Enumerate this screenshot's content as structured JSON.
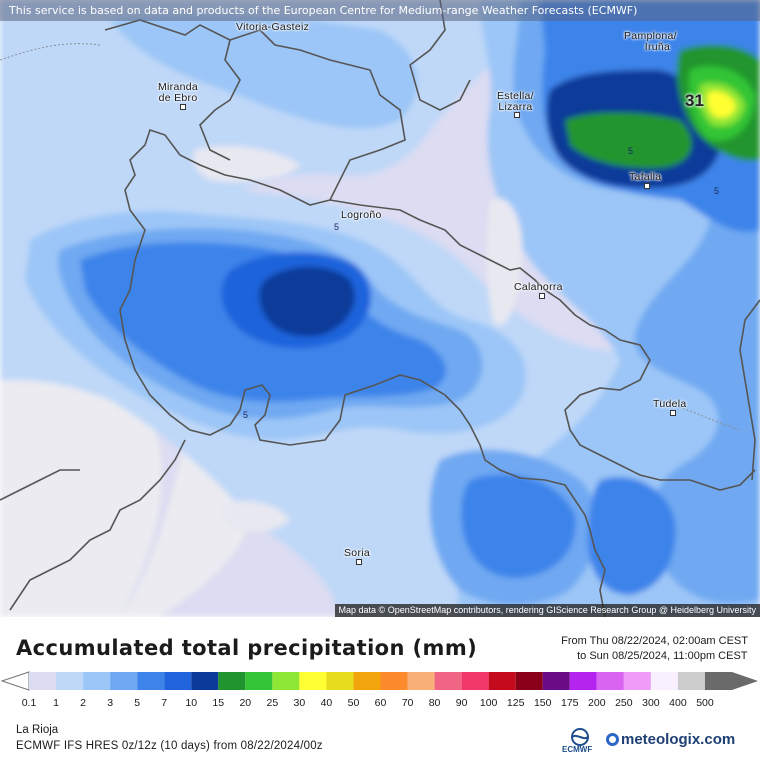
{
  "banner": "This service is based on data and products of the European Centre for Medium-range Weather Forecasts (ECMWF)",
  "attribution": "Map data © OpenStreetMap contributors, rendering GIScience Research Group @ Heidelberg University",
  "cities": [
    {
      "key": "vitoria",
      "line1": "Vitoria-Gasteiz",
      "line2": ""
    },
    {
      "key": "pamplona",
      "line1": "Pamplona/",
      "line2": "Iruña"
    },
    {
      "key": "miranda",
      "line1": "Miranda",
      "line2": "de Ebro"
    },
    {
      "key": "estella",
      "line1": "Estella/",
      "line2": "Lizarra"
    },
    {
      "key": "tafalla",
      "line1": "Tafalla",
      "line2": ""
    },
    {
      "key": "logrono",
      "line1": "Logroño",
      "line2": ""
    },
    {
      "key": "calahorra",
      "line1": "Calahorra",
      "line2": ""
    },
    {
      "key": "tudela",
      "line1": "Tudela",
      "line2": ""
    },
    {
      "key": "soria",
      "line1": "Soria",
      "line2": ""
    }
  ],
  "contour_labels": [
    "5",
    "5",
    "5",
    "5"
  ],
  "max_label": "31",
  "legend": {
    "title": "Accumulated total precipitation (mm)",
    "from": "From Thu 08/22/2024, 02:00am CEST",
    "to": "to Sun 08/25/2024, 11:00pm CEST",
    "ticks": [
      "0.1",
      "1",
      "2",
      "3",
      "5",
      "7",
      "10",
      "15",
      "20",
      "25",
      "30",
      "40",
      "50",
      "60",
      "70",
      "80",
      "90",
      "100",
      "125",
      "150",
      "175",
      "200",
      "250",
      "300",
      "400",
      "500"
    ],
    "colors": [
      "#dcdcf2",
      "#bfd8f8",
      "#9cc6f7",
      "#6fa9f2",
      "#3d84ea",
      "#1f64dc",
      "#0b3a99",
      "#21952d",
      "#33c535",
      "#8ee635",
      "#ffff33",
      "#e8dc1f",
      "#f2a40c",
      "#fb8a2c",
      "#f8b078",
      "#f06484",
      "#f0386a",
      "#c40a1c",
      "#8a0018",
      "#6a0c86",
      "#b424ee",
      "#d964f2",
      "#ee9cf6",
      "#f8f0ff",
      "#cdcdcd",
      "#6a6a6a"
    ]
  },
  "region": "La Rioja",
  "model": "ECMWF IFS HRES 0z/12z (10 days) from  08/22/2024/00z",
  "logos": {
    "ecmwf": "ECMWF",
    "meteologix": "meteologix.com"
  }
}
